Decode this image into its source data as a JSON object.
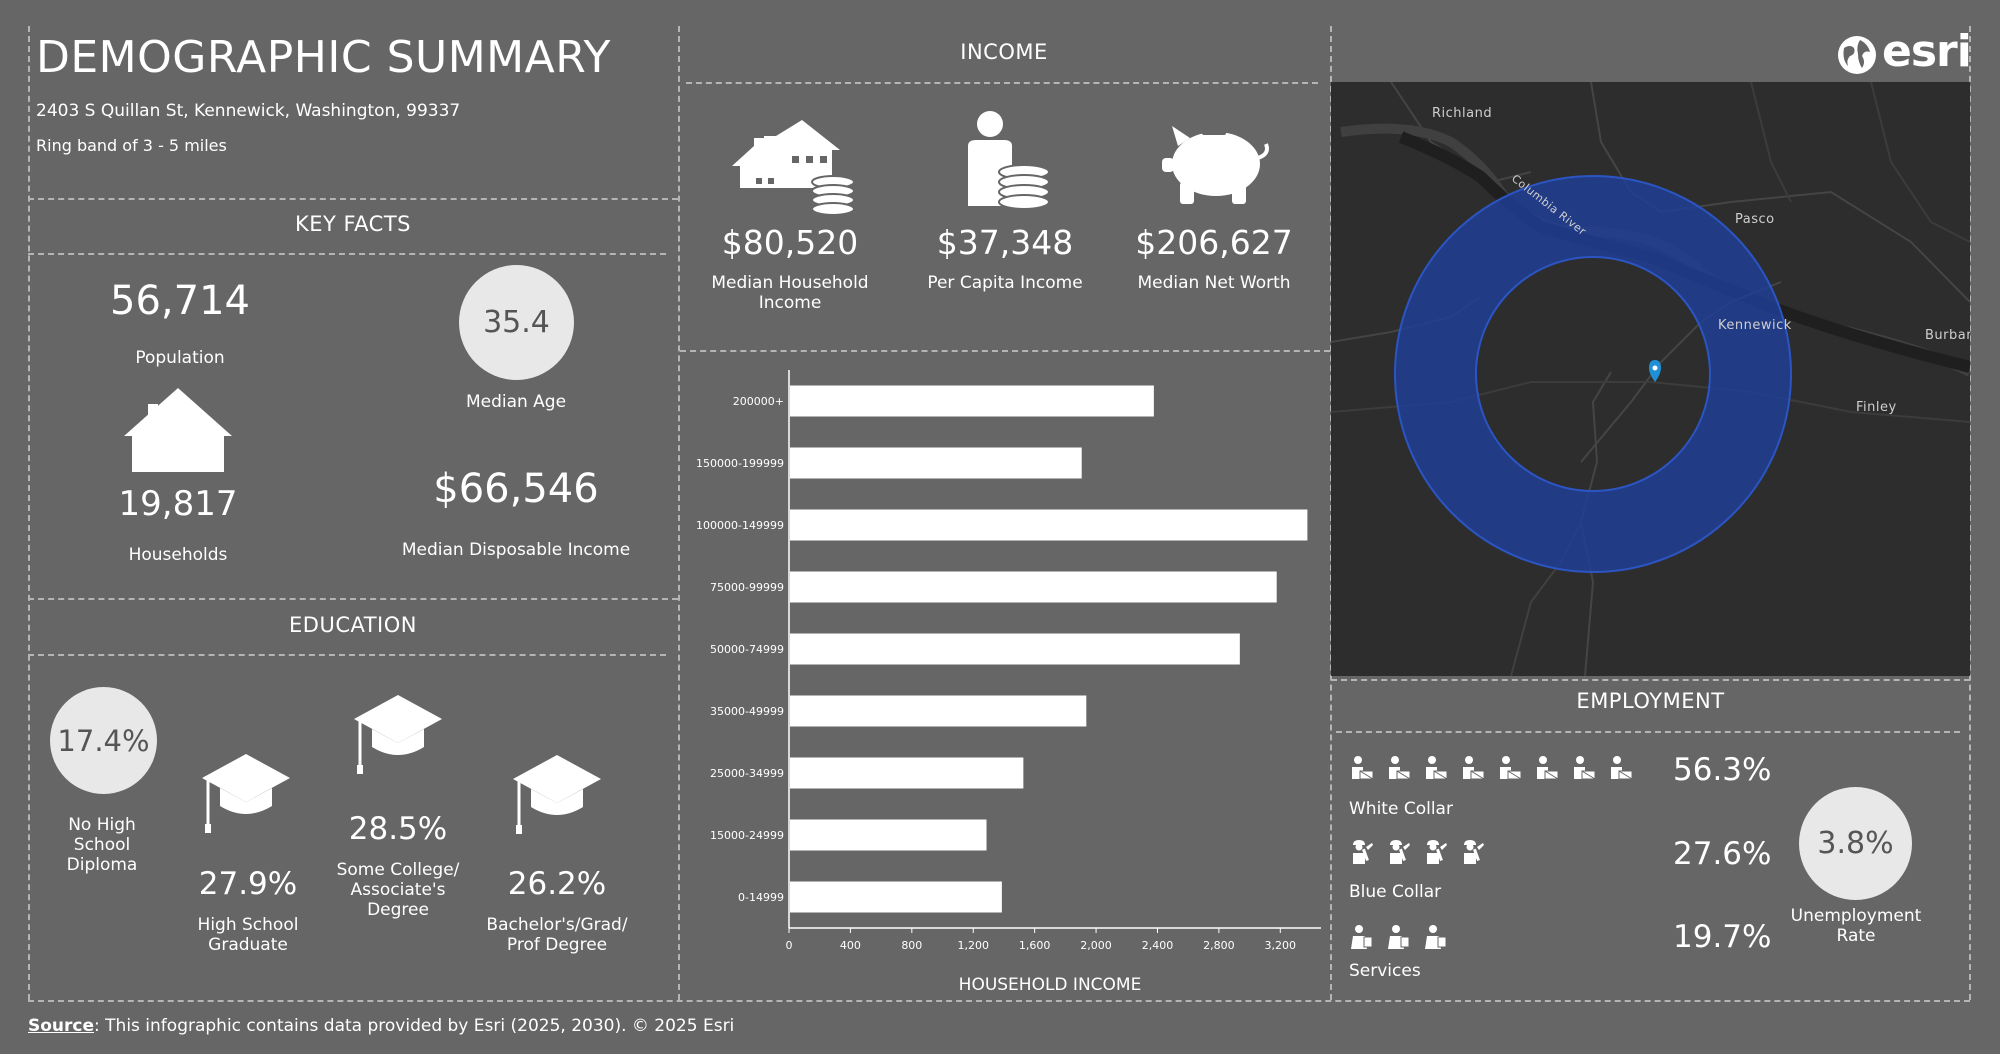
{
  "title": "DEMOGRAPHIC SUMMARY",
  "address": "2403 S Quillan St, Kennewick, Washington, 99337",
  "ring": "Ring band of 3 - 5 miles",
  "logo": "esri",
  "key_facts": {
    "header": "KEY FACTS",
    "population": {
      "value": "56,714",
      "label": "Population"
    },
    "median_age": {
      "value": "35.4",
      "label": "Median Age"
    },
    "households": {
      "value": "19,817",
      "label": "Households"
    },
    "disposable_income": {
      "value": "$66,546",
      "label": "Median Disposable Income"
    }
  },
  "education": {
    "header": "EDUCATION",
    "items": [
      {
        "value": "17.4%",
        "label": "No High School Diploma",
        "icon": "no-diploma-circle"
      },
      {
        "value": "27.9%",
        "label": "High School Graduate",
        "icon": "graduation-cap-icon"
      },
      {
        "value": "28.5%",
        "label": "Some College/ Associate's Degree",
        "icon": "graduation-cap-icon"
      },
      {
        "value": "26.2%",
        "label": "Bachelor's/Grad/ Prof Degree",
        "icon": "graduation-cap-icon"
      }
    ]
  },
  "income": {
    "header": "INCOME",
    "items": [
      {
        "value": "$80,520",
        "label": "Median Household Income",
        "icon": "house-coins-icon"
      },
      {
        "value": "$37,348",
        "label": "Per Capita Income",
        "icon": "person-coins-icon"
      },
      {
        "value": "$206,627",
        "label": "Median Net Worth",
        "icon": "piggy-bank-icon"
      }
    ]
  },
  "chart_data": {
    "type": "bar",
    "orientation": "horizontal",
    "title": "",
    "xlabel": "HOUSEHOLD INCOME",
    "ylabel": "",
    "categories": [
      "200000+",
      "150000-199999",
      "100000-149999",
      "75000-99999",
      "50000-74999",
      "35000-49999",
      "25000-34999",
      "15000-24999",
      "0-14999"
    ],
    "values": [
      2370,
      1900,
      3370,
      3170,
      2930,
      1930,
      1520,
      1280,
      1380
    ],
    "xlim": [
      0,
      3400
    ],
    "xticks": [
      "0",
      "400",
      "800",
      "1,200",
      "1,600",
      "2,000",
      "2,400",
      "2,800",
      "3,200"
    ],
    "grid": false,
    "bar_color": "#ffffff"
  },
  "map": {
    "labels": [
      "Richland",
      "Pasco",
      "Kennewick",
      "Finley",
      "Burbar",
      "Columbia River"
    ],
    "ring_color": "#1e3f99"
  },
  "employment": {
    "header": "EMPLOYMENT",
    "rows": [
      {
        "label": "White Collar",
        "value": "56.3%",
        "icon_count": 8,
        "icon": "white-collar-worker-icon"
      },
      {
        "label": "Blue Collar",
        "value": "27.6%",
        "icon_count": 4,
        "icon": "blue-collar-worker-icon"
      },
      {
        "label": "Services",
        "value": "19.7%",
        "icon_count": 3,
        "icon": "services-worker-icon"
      }
    ],
    "unemployment": {
      "value": "3.8%",
      "label": "Unemployment Rate"
    }
  },
  "source": {
    "prefix": "Source",
    "text": ": This infographic contains data provided by Esri (2025, 2030).  © 2025 Esri"
  }
}
